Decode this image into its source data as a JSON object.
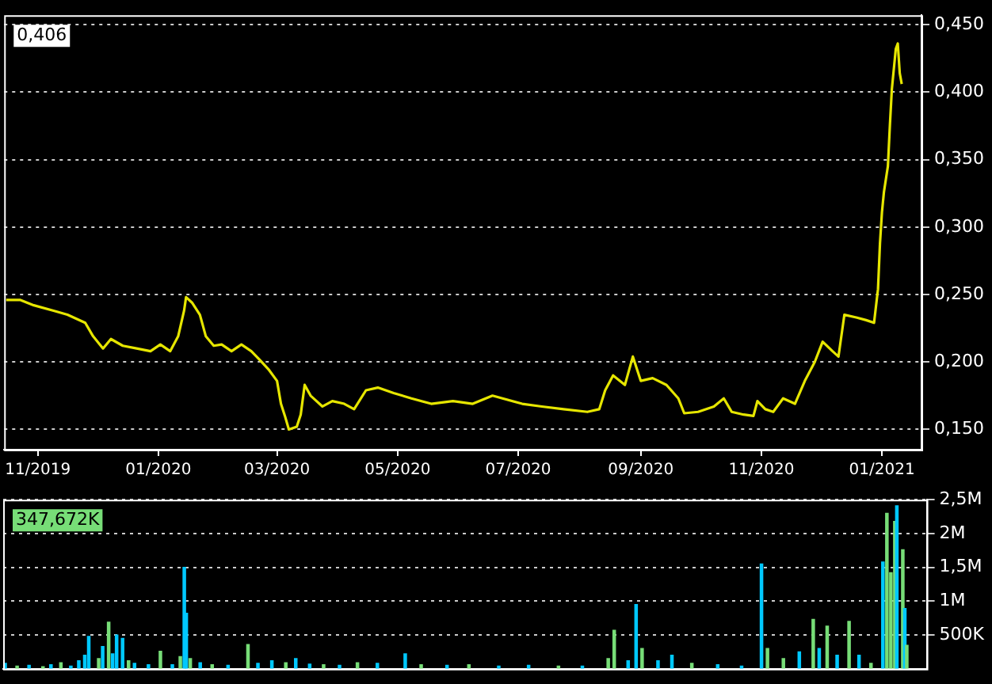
{
  "chart_data": [
    {
      "type": "line",
      "annotations": [
        "0,406"
      ],
      "x": [
        "2019-10-16",
        "2019-10-23",
        "2019-10-30",
        "2019-11-09",
        "2019-11-16",
        "2019-11-25",
        "2019-11-29",
        "2019-12-04",
        "2019-12-08",
        "2019-12-14",
        "2019-12-21",
        "2019-12-28",
        "2020-01-02",
        "2020-01-07",
        "2020-01-11",
        "2020-01-14",
        "2020-01-15",
        "2020-01-18",
        "2020-01-22",
        "2020-01-25",
        "2020-01-29",
        "2020-02-02",
        "2020-02-07",
        "2020-02-12",
        "2020-02-17",
        "2020-02-21",
        "2020-02-26",
        "2020-03-01",
        "2020-03-03",
        "2020-03-05",
        "2020-03-07",
        "2020-03-11",
        "2020-03-13",
        "2020-03-15",
        "2020-03-18",
        "2020-03-24",
        "2020-03-29",
        "2020-04-04",
        "2020-04-09",
        "2020-04-15",
        "2020-04-21",
        "2020-04-29",
        "2020-05-08",
        "2020-05-18",
        "2020-05-29",
        "2020-06-08",
        "2020-06-18",
        "2020-07-03",
        "2020-07-13",
        "2020-07-24",
        "2020-08-05",
        "2020-08-11",
        "2020-08-14",
        "2020-08-18",
        "2020-08-24",
        "2020-08-28",
        "2020-09-01",
        "2020-09-07",
        "2020-09-14",
        "2020-09-20",
        "2020-09-23",
        "2020-09-30",
        "2020-10-08",
        "2020-10-13",
        "2020-10-17",
        "2020-10-23",
        "2020-10-28",
        "2020-10-30",
        "2020-11-03",
        "2020-11-07",
        "2020-11-12",
        "2020-11-18",
        "2020-11-23",
        "2020-11-28",
        "2020-12-02",
        "2020-12-07",
        "2020-12-10",
        "2020-12-13",
        "2020-12-19",
        "2020-12-24",
        "2020-12-28",
        "2020-12-30",
        "2020-12-31",
        "2021-01-01",
        "2021-01-02",
        "2021-01-04",
        "2021-01-05",
        "2021-01-06",
        "2021-01-08",
        "2021-01-09",
        "2021-01-10",
        "2021-01-11"
      ],
      "series": [
        {
          "color": "#e6e600",
          "values": [
            0.246,
            0.246,
            0.242,
            0.238,
            0.235,
            0.229,
            0.219,
            0.21,
            0.217,
            0.212,
            0.21,
            0.208,
            0.213,
            0.208,
            0.219,
            0.238,
            0.248,
            0.244,
            0.235,
            0.219,
            0.212,
            0.213,
            0.208,
            0.213,
            0.208,
            0.202,
            0.194,
            0.186,
            0.169,
            0.16,
            0.15,
            0.152,
            0.161,
            0.183,
            0.175,
            0.167,
            0.171,
            0.169,
            0.165,
            0.179,
            0.181,
            0.177,
            0.173,
            0.169,
            0.171,
            0.169,
            0.175,
            0.169,
            0.167,
            0.165,
            0.163,
            0.165,
            0.179,
            0.19,
            0.183,
            0.204,
            0.186,
            0.188,
            0.183,
            0.173,
            0.162,
            0.163,
            0.167,
            0.173,
            0.163,
            0.161,
            0.16,
            0.171,
            0.165,
            0.163,
            0.173,
            0.169,
            0.186,
            0.2,
            0.215,
            0.208,
            0.204,
            0.235,
            0.233,
            0.231,
            0.229,
            0.254,
            0.288,
            0.311,
            0.326,
            0.345,
            0.375,
            0.402,
            0.432,
            0.436,
            0.414,
            0.406
          ]
        }
      ],
      "xlim": [
        "2019-10-15",
        "2021-01-21"
      ],
      "xticks": [
        {
          "value": "2019-11-01",
          "label": "11/2019"
        },
        {
          "value": "2020-01-01",
          "label": "01/2020"
        },
        {
          "value": "2020-03-01",
          "label": "03/2020"
        },
        {
          "value": "2020-05-01",
          "label": "05/2020"
        },
        {
          "value": "2020-07-01",
          "label": "07/2020"
        },
        {
          "value": "2020-09-01",
          "label": "09/2020"
        },
        {
          "value": "2020-11-01",
          "label": "11/2020"
        },
        {
          "value": "2021-01-01",
          "label": "01/2021"
        }
      ],
      "ylim": [
        0.135,
        0.457
      ],
      "yticks": [
        {
          "value": 0.15,
          "label": "0,150"
        },
        {
          "value": 0.2,
          "label": "0,200"
        },
        {
          "value": 0.25,
          "label": "0,250"
        },
        {
          "value": 0.3,
          "label": "0,300"
        },
        {
          "value": 0.35,
          "label": "0,350"
        },
        {
          "value": 0.4,
          "label": "0,400"
        },
        {
          "value": 0.45,
          "label": "0,450"
        }
      ],
      "grid": "y"
    },
    {
      "type": "bar",
      "annotations": [
        "347,672K"
      ],
      "x": [
        "2019-10-16",
        "2019-10-22",
        "2019-10-28",
        "2019-11-04",
        "2019-11-08",
        "2019-11-13",
        "2019-11-18",
        "2019-11-22",
        "2019-11-25",
        "2019-11-27",
        "2019-12-02",
        "2019-12-04",
        "2019-12-07",
        "2019-12-09",
        "2019-12-11",
        "2019-12-14",
        "2019-12-17",
        "2019-12-20",
        "2019-12-27",
        "2020-01-02",
        "2020-01-08",
        "2020-01-12",
        "2020-01-14",
        "2020-01-15",
        "2020-01-17",
        "2020-01-22",
        "2020-01-28",
        "2020-02-05",
        "2020-02-15",
        "2020-02-20",
        "2020-02-27",
        "2020-03-05",
        "2020-03-10",
        "2020-03-17",
        "2020-03-24",
        "2020-04-01",
        "2020-04-10",
        "2020-04-20",
        "2020-05-04",
        "2020-05-12",
        "2020-05-25",
        "2020-06-05",
        "2020-06-20",
        "2020-07-05",
        "2020-07-20",
        "2020-08-01",
        "2020-08-14",
        "2020-08-17",
        "2020-08-24",
        "2020-08-28",
        "2020-08-31",
        "2020-09-08",
        "2020-09-15",
        "2020-09-25",
        "2020-10-08",
        "2020-10-20",
        "2020-10-30",
        "2020-11-02",
        "2020-11-10",
        "2020-11-18",
        "2020-11-25",
        "2020-11-28",
        "2020-12-02",
        "2020-12-07",
        "2020-12-13",
        "2020-12-18",
        "2020-12-24",
        "2020-12-30",
        "2021-01-01",
        "2021-01-03",
        "2021-01-05",
        "2021-01-06",
        "2021-01-09",
        "2021-01-10",
        "2021-01-11"
      ],
      "values": [
        80000,
        40000,
        50000,
        30000,
        60000,
        90000,
        40000,
        120000,
        200000,
        480000,
        150000,
        330000,
        690000,
        220000,
        500000,
        450000,
        120000,
        80000,
        60000,
        260000,
        60000,
        180000,
        1500000,
        820000,
        150000,
        90000,
        60000,
        50000,
        360000,
        80000,
        120000,
        90000,
        150000,
        70000,
        60000,
        50000,
        90000,
        80000,
        220000,
        60000,
        50000,
        60000,
        40000,
        50000,
        40000,
        40000,
        150000,
        570000,
        120000,
        950000,
        300000,
        120000,
        200000,
        80000,
        60000,
        40000,
        1550000,
        300000,
        150000,
        250000,
        730000,
        300000,
        630000,
        200000,
        700000,
        200000,
        80000,
        1580000,
        2300000,
        1420000,
        2180000,
        2410000,
        1760000,
        890000,
        347672
      ],
      "colors": [
        "#00c8ff",
        "#77dd77",
        "#00c8ff",
        "#77dd77",
        "#00c8ff",
        "#77dd77",
        "#00c8ff",
        "#00c8ff",
        "#00c8ff",
        "#00c8ff",
        "#77dd77",
        "#00c8ff",
        "#77dd77",
        "#00c8ff",
        "#00c8ff",
        "#00c8ff",
        "#77dd77",
        "#00c8ff",
        "#00c8ff",
        "#77dd77",
        "#00c8ff",
        "#77dd77",
        "#00c8ff",
        "#00c8ff",
        "#77dd77",
        "#00c8ff",
        "#77dd77",
        "#00c8ff",
        "#77dd77",
        "#00c8ff",
        "#00c8ff",
        "#77dd77",
        "#00c8ff",
        "#00c8ff",
        "#77dd77",
        "#00c8ff",
        "#77dd77",
        "#00c8ff",
        "#00c8ff",
        "#77dd77",
        "#00c8ff",
        "#77dd77",
        "#00c8ff",
        "#00c8ff",
        "#77dd77",
        "#00c8ff",
        "#77dd77",
        "#77dd77",
        "#00c8ff",
        "#00c8ff",
        "#77dd77",
        "#00c8ff",
        "#00c8ff",
        "#77dd77",
        "#00c8ff",
        "#00c8ff",
        "#00c8ff",
        "#77dd77",
        "#77dd77",
        "#00c8ff",
        "#77dd77",
        "#00c8ff",
        "#77dd77",
        "#00c8ff",
        "#77dd77",
        "#00c8ff",
        "#77dd77",
        "#00c8ff",
        "#77dd77",
        "#77dd77",
        "#77dd77",
        "#00c8ff",
        "#77dd77",
        "#00c8ff",
        "#77dd77"
      ],
      "xlim": [
        "2019-10-15",
        "2021-01-21"
      ],
      "ylim": [
        0,
        2500000
      ],
      "yticks": [
        {
          "value": 500000,
          "label": "500K"
        },
        {
          "value": 1000000,
          "label": "1M"
        },
        {
          "value": 1500000,
          "label": "1,5M"
        },
        {
          "value": 2000000,
          "label": "2M"
        },
        {
          "value": 2500000,
          "label": "2,5M"
        }
      ],
      "grid": "y",
      "tick_labels": "y"
    }
  ]
}
